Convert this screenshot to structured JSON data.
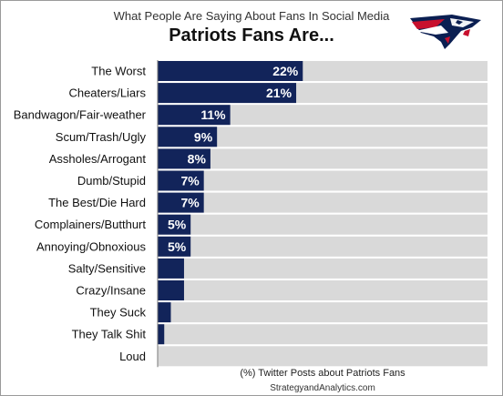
{
  "header": {
    "subtitle": "What People Are Saying About Fans In Social Media",
    "title": "Patriots Fans Are..."
  },
  "footer": {
    "xlabel": "(%) Twitter Posts about Patriots Fans",
    "source": "StrategyandAnalytics.com"
  },
  "logo": {
    "icon": "patriots-logo-icon"
  },
  "colors": {
    "bar": "#12245a",
    "track": "#d9d9d9",
    "bar_label": "#ffffff",
    "category_text": "#111111"
  },
  "chart_data": {
    "type": "bar",
    "orientation": "horizontal",
    "title": "Patriots Fans Are...",
    "subtitle": "What People Are Saying About Fans In Social Media",
    "xlabel": "(%) Twitter Posts about Patriots Fans",
    "xlim": [
      0,
      50
    ],
    "grid": false,
    "categories": [
      "The Worst",
      "Cheaters/Liars",
      "Bandwagon/Fair-weather",
      "Scum/Trash/Ugly",
      "Assholes/Arrogant",
      "Dumb/Stupid",
      "The Best/Die Hard",
      "Complainers/Butthurt",
      "Annoying/Obnoxious",
      "Salty/Sensitive",
      "Crazy/Insane",
      "They Suck",
      "They Talk Shit",
      "Loud"
    ],
    "values": [
      22,
      21,
      11,
      9,
      8,
      7,
      7,
      5,
      5,
      4,
      4,
      2,
      1,
      0
    ],
    "data_labels": [
      "22%",
      "21%",
      "11%",
      "9%",
      "8%",
      "7%",
      "7%",
      "5%",
      "5%",
      "",
      "",
      "",
      "",
      ""
    ]
  }
}
